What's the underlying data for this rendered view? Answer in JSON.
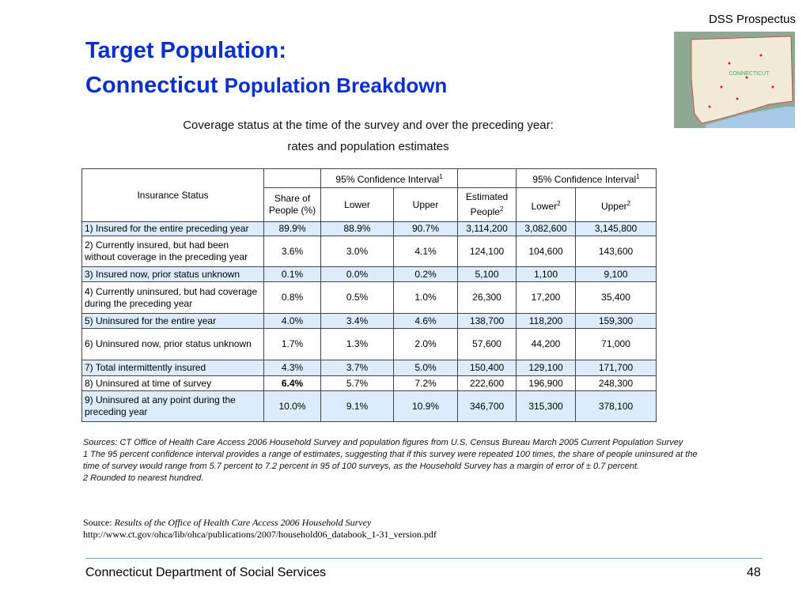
{
  "header": {
    "brand": "DSS Prospectus",
    "title_line1": "Target Population:",
    "title_line2_a": "Connecticut",
    "title_line2_b": "Population Breakdown"
  },
  "map": {
    "label": "CONNECTICUT"
  },
  "table": {
    "caption": [
      "Coverage status at the time of the survey and over the preceding year:",
      "rates and population estimates"
    ],
    "head_top": {
      "status": "Insurance Status",
      "ci1": "95% Confidence Interval",
      "ci1_sup": "1",
      "ci2": "95% Confidence Interval",
      "ci2_sup": "1"
    },
    "head_bottom": {
      "share": "Share of People (%)",
      "lower1": "Lower",
      "upper1": "Upper",
      "estimated": "Estimated People",
      "estimated_sup": "2",
      "lower2": "Lower",
      "lower2_sup": "2",
      "upper2": "Upper",
      "upper2_sup": "2"
    },
    "rows": [
      [
        "1) Insured for the entire preceding year",
        "89.9%",
        "88.9%",
        "90.7%",
        "3,114,200",
        "3,082,600",
        "3,145,800"
      ],
      [
        "2) Currently insured, but had been without coverage in the preceding year",
        "3.6%",
        "3.0%",
        "4.1%",
        "124,100",
        "104,600",
        "143,600"
      ],
      [
        "3) Insured now, prior status unknown",
        "0.1%",
        "0.0%",
        "0.2%",
        "5,100",
        "1,100",
        "9,100"
      ],
      [
        "4) Currently uninsured, but had coverage during the preceding year",
        "0.8%",
        "0.5%",
        "1.0%",
        "26,300",
        "17,200",
        "35,400"
      ],
      [
        "5) Uninsured for the entire year",
        "4.0%",
        "3.4%",
        "4.6%",
        "138,700",
        "118,200",
        "159,300"
      ],
      [
        "6) Uninsured now, prior status unknown",
        "1.7%",
        "1.3%",
        "2.0%",
        "57,600",
        "44,200",
        "71,000"
      ],
      [
        "7) Total intermittently insured",
        "4.3%",
        "3.7%",
        "5.0%",
        "150,400",
        "129,100",
        "171,700"
      ],
      [
        "8) Uninsured at time of survey",
        "6.4%",
        "5.7%",
        "7.2%",
        "222,600",
        "196,900",
        "248,300"
      ],
      [
        "9) Uninsured at any point during the preceding year",
        "10.0%",
        "9.1%",
        "10.9%",
        "346,700",
        "315,300",
        "378,100"
      ]
    ]
  },
  "notes": [
    "Sources: CT Office of Health Care Access 2006 Household Survey and population figures from U.S. Census Bureau March 2005 Current Population Survey",
    "1 The 95 percent confidence interval provides a range of estimates, suggesting that if this survey were repeated 100 times, the share of people uninsured at the time of survey would range from 5.7 percent to 7.2 percent in 95 of 100 surveys, as the Household Survey has a margin of error of ± 0.7 percent.",
    "2 Rounded to nearest hundred."
  ],
  "source": {
    "prefix": "Source:",
    "title": "Results of the Office of Health Care Access 2006 Household Survey",
    "url": "http://www.ct.gov/ohca/lib/ohca/publications/2007/household06_databook_1-31_version.pdf"
  },
  "footer": {
    "org": "Connecticut Department of Social Services",
    "page": "48"
  }
}
